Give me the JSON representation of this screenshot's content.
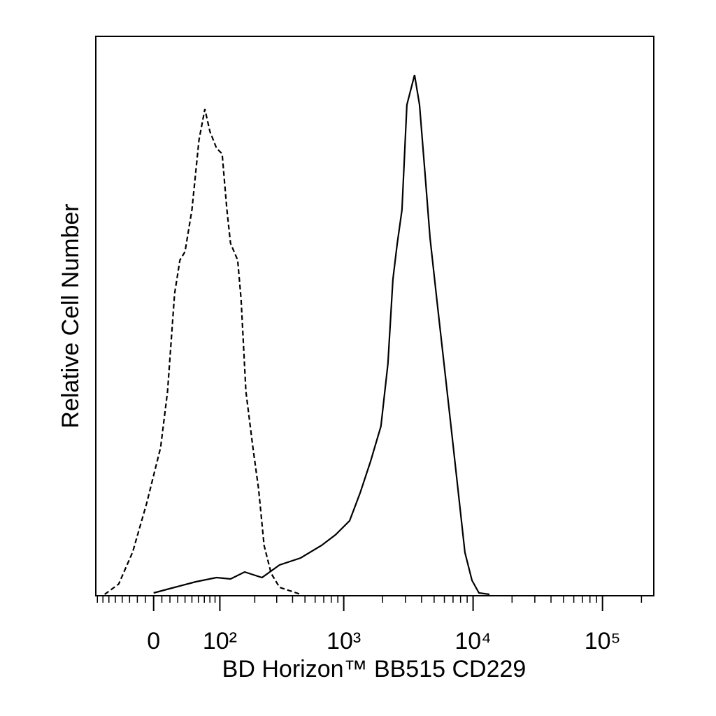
{
  "chart_data": {
    "type": "line",
    "x_label": "BD Horizon™ BB515 CD229",
    "y_label": "Relative Cell Number",
    "xscale": "biexponential",
    "xlim": [
      -83,
      249000
    ],
    "ylim": [
      0,
      100
    ],
    "xticks": [
      0,
      {
        "value": 100,
        "label": "10²"
      },
      {
        "value": 1000,
        "label": "10³"
      },
      {
        "value": 10000,
        "label": "10⁴"
      },
      {
        "value": 100000,
        "label": "10⁵"
      }
    ],
    "xminorticks": [
      -80,
      -70,
      -60,
      -50,
      -40,
      -30,
      -20,
      -10,
      10,
      20,
      30,
      40,
      50,
      60,
      70,
      80,
      90,
      200,
      300,
      400,
      500,
      600,
      700,
      800,
      900,
      2000,
      3000,
      4000,
      5000,
      6000,
      7000,
      8000,
      9000,
      20000,
      30000,
      40000,
      50000,
      60000,
      70000,
      80000,
      90000,
      200000
    ],
    "series": [
      {
        "name": null,
        "color": "#000000",
        "dash": true,
        "x": [
          -67,
          -45,
          -26,
          -8.5,
          8.5,
          17,
          26,
          33,
          40,
          50,
          61,
          71,
          80,
          93,
          105,
          116,
          125,
          144,
          154,
          169,
          193,
          215,
          238,
          271,
          316,
          462
        ],
        "values": [
          0.25,
          2.1,
          7.8,
          16.5,
          26.5,
          36.5,
          54,
          60,
          61.5,
          69,
          81.5,
          87,
          83,
          80,
          79,
          69,
          63,
          60,
          53,
          36.5,
          26.5,
          19,
          9,
          4,
          1.5,
          0.25
        ]
      },
      {
        "name": null,
        "color": "#000000",
        "dash": false,
        "x": [
          0,
          26,
          56,
          93,
          125,
          165,
          229,
          316,
          462,
          673,
          864,
          1110,
          1341,
          1611,
          1940,
          2197,
          2400,
          2586,
          2820,
          3080,
          3530,
          3855,
          4258,
          4645,
          5259,
          5960,
          6746,
          7640,
          8650,
          9803,
          11100,
          13380
        ],
        "values": [
          0.5,
          1.5,
          2.5,
          3.25,
          3,
          4.25,
          3.25,
          5.5,
          6.75,
          9,
          10.9,
          13.4,
          18.4,
          24,
          30.3,
          41.5,
          56.5,
          62.75,
          69,
          87.75,
          93.1,
          87.75,
          75.25,
          64,
          52.75,
          41.5,
          30.3,
          19,
          7.75,
          2.75,
          0.5,
          0.25
        ]
      }
    ]
  }
}
